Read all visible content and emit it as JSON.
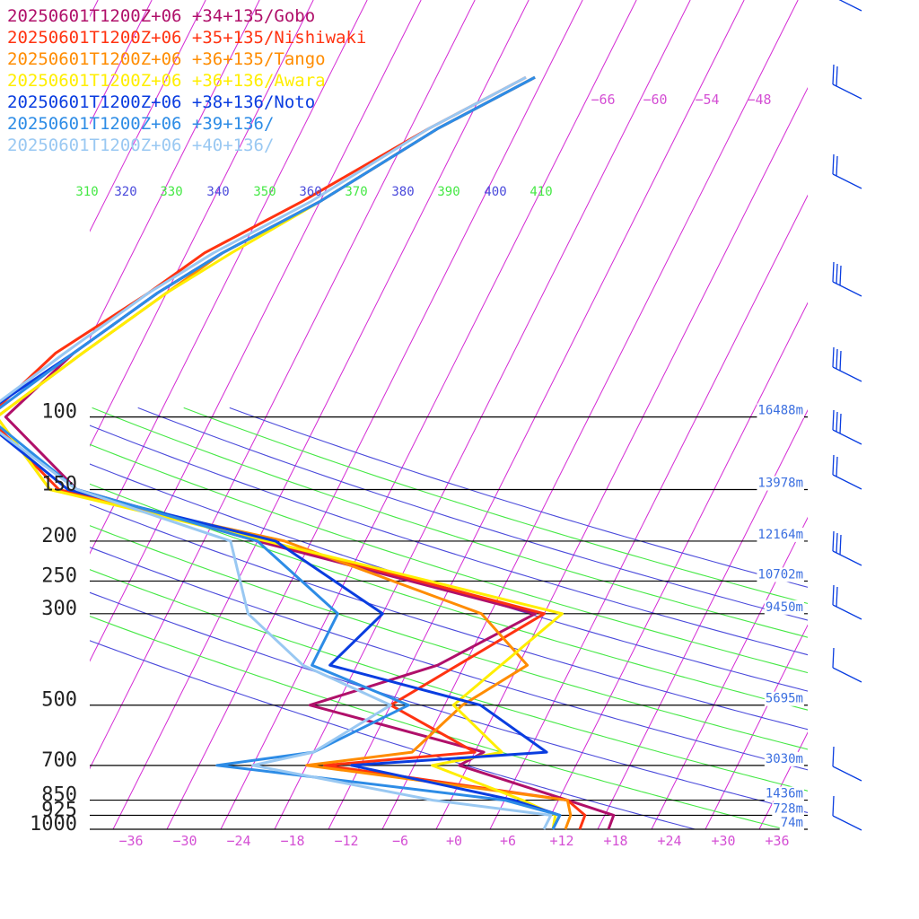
{
  "chart_data": {
    "type": "line",
    "title": "",
    "xlabel": "",
    "ylabel": "",
    "pressure_levels": [
      {
        "p": 100,
        "label": "100",
        "height": "16488m"
      },
      {
        "p": 150,
        "label": "150",
        "height": "13978m"
      },
      {
        "p": 200,
        "label": "200",
        "height": "12164m"
      },
      {
        "p": 250,
        "label": "250",
        "height": "10702m"
      },
      {
        "p": 300,
        "label": "300",
        "height": "9450m"
      },
      {
        "p": 500,
        "label": "500",
        "height": "5695m"
      },
      {
        "p": 700,
        "label": "700",
        "height": "3030m"
      },
      {
        "p": 850,
        "label": "850",
        "height": "1436m"
      },
      {
        "p": 925,
        "label": "925",
        "height": "728m"
      },
      {
        "p": 1000,
        "label": "1000",
        "height": "74m"
      }
    ],
    "x_ticks": [
      "−36",
      "−30",
      "−24",
      "−18",
      "−12",
      "−6",
      "+0",
      "+6",
      "+12",
      "+18",
      "+24",
      "+30",
      "+36"
    ],
    "top_temp_labels": [
      "−66",
      "−60",
      "−54",
      "−48"
    ],
    "theta_labels": [
      "310",
      "320",
      "330",
      "340",
      "350",
      "360",
      "370",
      "380",
      "390",
      "400",
      "410"
    ],
    "series": [
      {
        "name": "20250601T1200Z+06 +34+135/Gobo",
        "color": "#b0106a",
        "points": [
          [
            1000,
            17.2
          ],
          [
            925,
            17
          ],
          [
            850,
            11
          ],
          [
            700,
            -3
          ],
          [
            650,
            -1
          ],
          [
            500,
            -23
          ],
          [
            400,
            -11
          ],
          [
            300,
            -3
          ],
          [
            200,
            -38
          ],
          [
            150,
            -61
          ],
          [
            100,
            -73
          ],
          [
            70,
            -69
          ],
          [
            50,
            -63
          ],
          [
            40,
            -58
          ],
          [
            30,
            -50
          ],
          [
            20,
            -41
          ],
          [
            15,
            -33
          ]
        ]
      },
      {
        "name": "20250601T1200Z+06 +35+135/Nishiwaki",
        "color": "#ff3311",
        "points": [
          [
            1000,
            14
          ],
          [
            925,
            13.8
          ],
          [
            850,
            11
          ],
          [
            700,
            -18
          ],
          [
            650,
            -2
          ],
          [
            500,
            -14
          ],
          [
            300,
            -2
          ],
          [
            200,
            -37
          ],
          [
            150,
            -63
          ],
          [
            100,
            -75
          ],
          [
            70,
            -71
          ],
          [
            50,
            -64
          ],
          [
            40,
            -60
          ],
          [
            30,
            -52
          ],
          [
            20,
            -42
          ],
          [
            15,
            -34
          ]
        ]
      },
      {
        "name": "20250601T1200Z+06 +36+135/Tango",
        "color": "#ff8c00",
        "points": [
          [
            1000,
            12.4
          ],
          [
            925,
            12.2
          ],
          [
            850,
            11
          ],
          [
            700,
            -20
          ],
          [
            650,
            -9
          ],
          [
            500,
            -6
          ],
          [
            400,
            -1
          ],
          [
            300,
            -9
          ],
          [
            200,
            -35
          ],
          [
            150,
            -64
          ],
          [
            100,
            -74
          ],
          [
            70,
            -68
          ],
          [
            50,
            -62
          ],
          [
            40,
            -58
          ],
          [
            30,
            -50
          ],
          [
            20,
            -41
          ],
          [
            15,
            -33
          ]
        ]
      },
      {
        "name": "20250601T1200Z+06 +36+136/Awara",
        "color": "#ffee00",
        "points": [
          [
            1000,
            11
          ],
          [
            925,
            10.5
          ],
          [
            850,
            6
          ],
          [
            700,
            -6
          ],
          [
            650,
            1
          ],
          [
            500,
            -7
          ],
          [
            300,
            0
          ],
          [
            200,
            -37
          ],
          [
            150,
            -64
          ],
          [
            100,
            -74
          ],
          [
            70,
            -68
          ],
          [
            50,
            -62
          ],
          [
            40,
            -57
          ],
          [
            30,
            -50
          ],
          [
            20,
            -41
          ],
          [
            15,
            -33
          ]
        ]
      },
      {
        "name": "20250601T1200Z+06 +38+136/Noto",
        "color": "#0a3de0",
        "points": [
          [
            1000,
            11
          ],
          [
            925,
            11
          ],
          [
            850,
            5
          ],
          [
            700,
            -15
          ],
          [
            650,
            6
          ],
          [
            500,
            -4
          ],
          [
            400,
            -23
          ],
          [
            300,
            -20
          ],
          [
            200,
            -36
          ],
          [
            150,
            -62
          ],
          [
            100,
            -76
          ],
          [
            70,
            -69
          ],
          [
            50,
            -63
          ],
          [
            40,
            -58
          ],
          [
            30,
            -50
          ],
          [
            20,
            -41
          ],
          [
            15,
            -33
          ]
        ]
      },
      {
        "name": "20250601T1200Z+06 +39+136/",
        "color": "#2d8ce6",
        "points": [
          [
            1000,
            11
          ],
          [
            925,
            11
          ],
          [
            850,
            4
          ],
          [
            700,
            -30
          ],
          [
            650,
            -20
          ],
          [
            500,
            -12
          ],
          [
            400,
            -25
          ],
          [
            300,
            -25
          ],
          [
            200,
            -38
          ],
          [
            150,
            -61
          ],
          [
            100,
            -75
          ],
          [
            70,
            -69
          ],
          [
            50,
            -63
          ],
          [
            40,
            -58
          ],
          [
            30,
            -50
          ],
          [
            20,
            -41
          ],
          [
            15,
            -33
          ]
        ]
      },
      {
        "name": "20250601T1200Z+06 +40+136/",
        "color": "#99c8f2",
        "points": [
          [
            1000,
            10
          ],
          [
            925,
            10
          ],
          [
            850,
            -4
          ],
          [
            700,
            -26
          ],
          [
            650,
            -20
          ],
          [
            500,
            -14
          ],
          [
            400,
            -26
          ],
          [
            300,
            -35
          ],
          [
            200,
            -41
          ],
          [
            150,
            -61
          ],
          [
            100,
            -76
          ],
          [
            70,
            -70
          ],
          [
            50,
            -64
          ],
          [
            40,
            -59
          ],
          [
            30,
            -51
          ],
          [
            20,
            -42
          ],
          [
            15,
            -34
          ]
        ]
      }
    ]
  }
}
